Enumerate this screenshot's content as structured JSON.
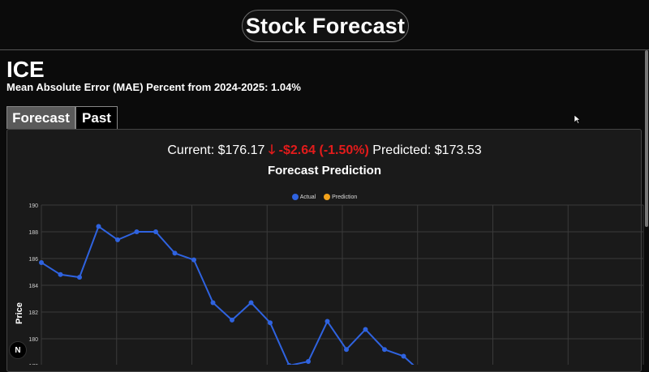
{
  "header": {
    "title": "Stock Forecast"
  },
  "stock": {
    "ticker": "ICE",
    "mae_text": "Mean Absolute Error (MAE) Percent from 2024-2025: 1.04%"
  },
  "tabs": [
    {
      "label": "Forecast",
      "active": true
    },
    {
      "label": "Past",
      "active": false
    }
  ],
  "price": {
    "current_label": "Current: $176.17",
    "arrow_icon": "arrow-down-icon",
    "arrow_glyph": "🡓",
    "change_text": "-$2.64 (-1.50%)",
    "predicted_label": "Predicted: $173.53",
    "change_color": "#e31b1b"
  },
  "chart_data": {
    "type": "line",
    "title": "Forecast Prediction",
    "ylabel": "Price",
    "ylim": [
      178,
      190
    ],
    "yticks": [
      178,
      180,
      182,
      184,
      186,
      188,
      190
    ],
    "grid": true,
    "legend_position": "top-center",
    "series": [
      {
        "name": "Actual",
        "color": "#2f63e0",
        "values": [
          185.7,
          184.8,
          184.6,
          188.4,
          187.4,
          188.0,
          188.0,
          186.4,
          185.9,
          182.7,
          181.4,
          182.7,
          181.2,
          178.0,
          178.3,
          181.3,
          179.2,
          180.7,
          179.2,
          178.7,
          177.4
        ]
      },
      {
        "name": "Prediction",
        "color": "#f2a21b",
        "values": []
      }
    ]
  },
  "badge": {
    "text": "N"
  }
}
